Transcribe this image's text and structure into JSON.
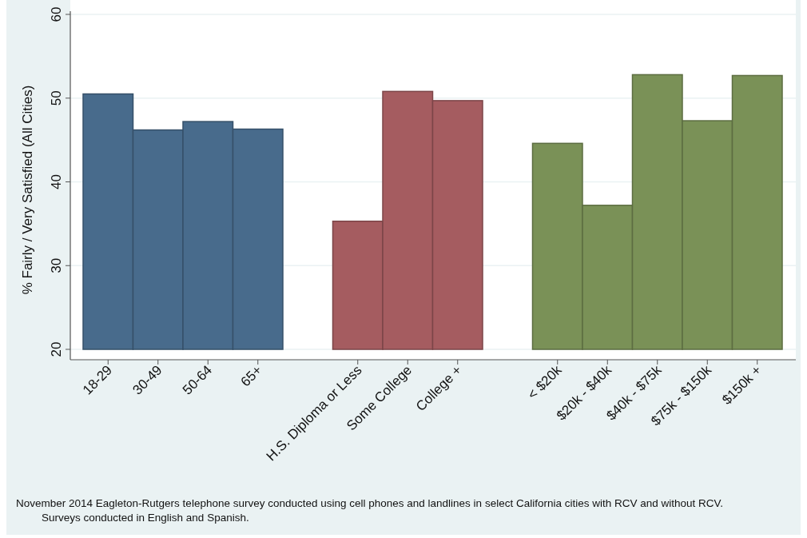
{
  "chart_data": {
    "type": "bar",
    "ylabel": "% Fairly / Very Satisfied (All Cities)",
    "categories": [
      "18-29",
      "30-49",
      "50-64",
      "65+",
      null,
      "H.S. Diploma or Less",
      "Some College",
      "College +",
      null,
      "< $20k",
      "$20k - $40k",
      "$40k - $75k",
      "$75k - $150k",
      "$150k +"
    ],
    "values": [
      50.5,
      46.2,
      47.2,
      46.3,
      null,
      35.3,
      50.8,
      49.7,
      null,
      44.6,
      37.2,
      52.8,
      47.3,
      52.7
    ],
    "colors": [
      "#486b8c",
      "#486b8c",
      "#486b8c",
      "#486b8c",
      null,
      "#a55c60",
      "#a55c60",
      "#a55c60",
      null,
      "#7a9157",
      "#7a9157",
      "#7a9157",
      "#7a9157",
      "#7a9157"
    ],
    "ylim": [
      20,
      60
    ],
    "yticks": [
      20,
      30,
      40,
      50,
      60
    ],
    "grid": "y",
    "annotations": [
      "November 2014 Eagleton-Rutgers telephone survey conducted using cell phones and landlines in select California cities with RCV and without RCV.",
      "Surveys conducted in English and Spanish."
    ]
  }
}
